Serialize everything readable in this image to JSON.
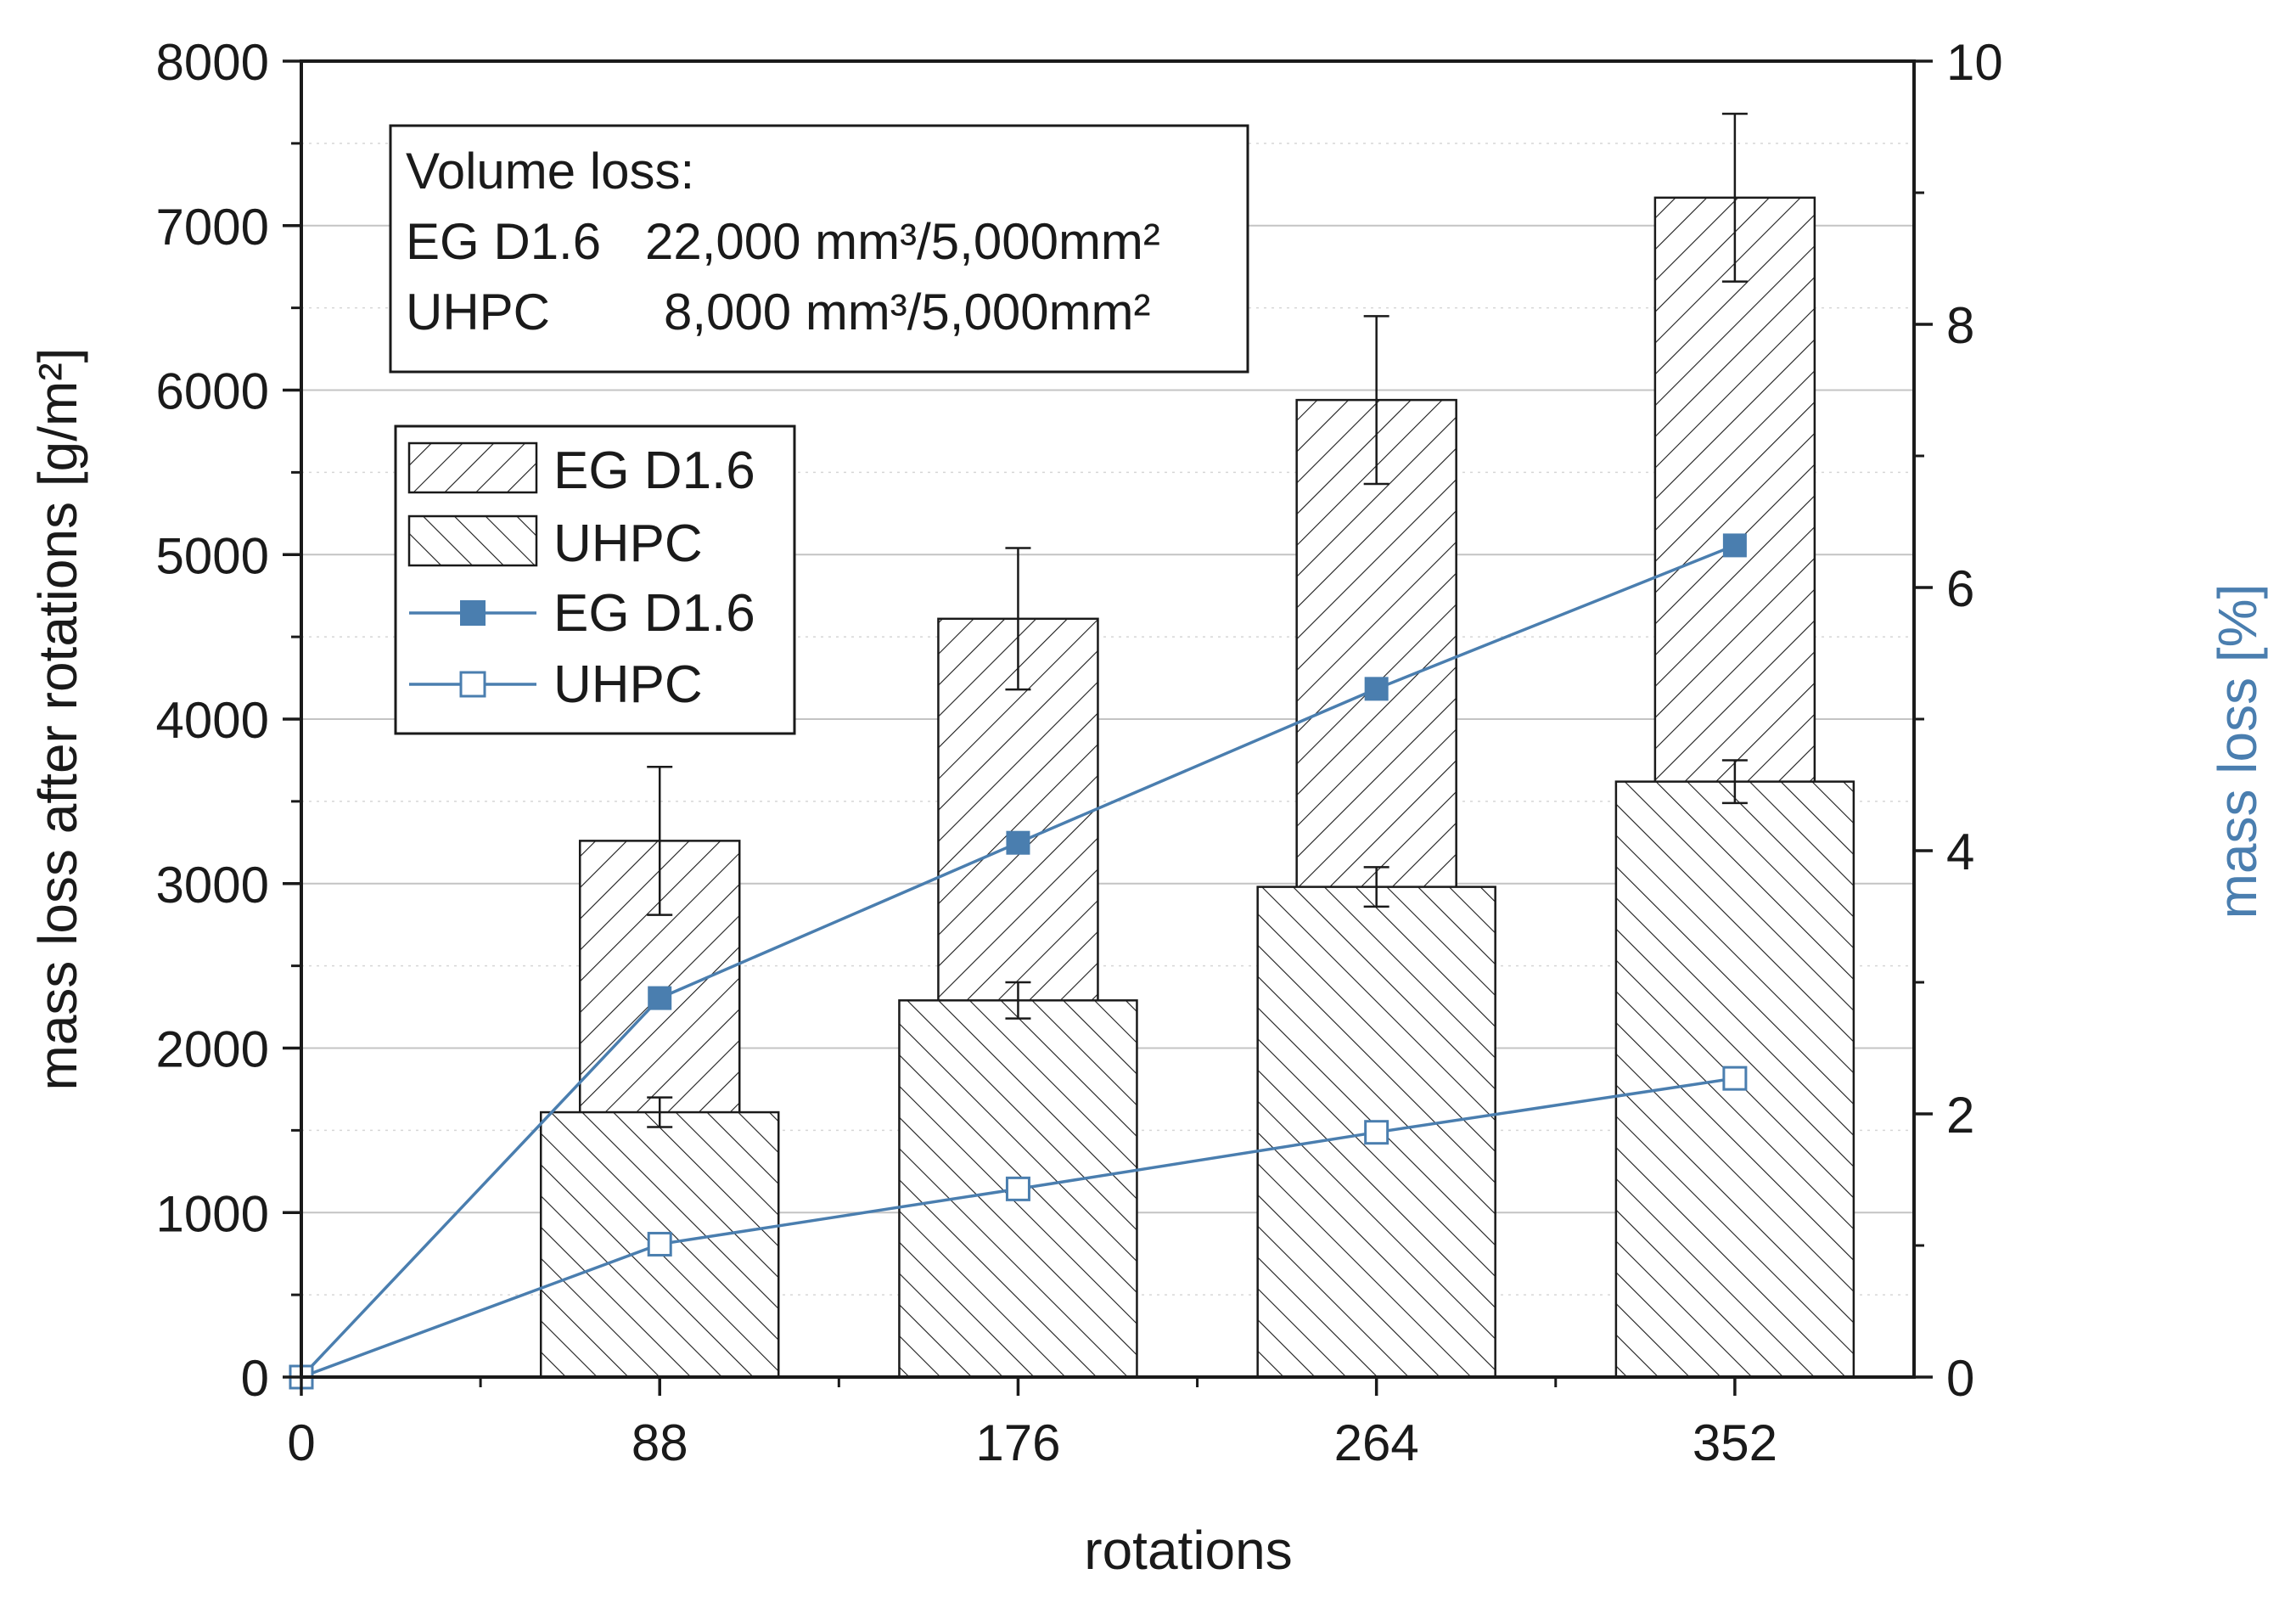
{
  "chart_data": {
    "type": "bar",
    "xlabel": "rotations",
    "ylabel": "mass loss after rotations [g/m²]",
    "y2label": "mass loss [%]",
    "x_ticks": [
      0,
      88,
      176,
      264,
      352
    ],
    "x_tick_labels": [
      "0",
      "88",
      "176",
      "264",
      "352"
    ],
    "x_range": [
      0,
      396
    ],
    "ylim": [
      0,
      8000
    ],
    "y_ticks": [
      0,
      1000,
      2000,
      3000,
      4000,
      5000,
      6000,
      7000,
      8000
    ],
    "y_tick_labels": [
      "0",
      "1000",
      "2000",
      "3000",
      "4000",
      "5000",
      "6000",
      "7000",
      "8000"
    ],
    "y2lim": [
      0,
      10
    ],
    "y2_ticks": [
      0,
      2,
      4,
      6,
      8,
      10
    ],
    "y2_tick_labels": [
      "0",
      "2",
      "4",
      "6",
      "8",
      "10"
    ],
    "grid": true,
    "bar_series": [
      {
        "name": "EG D1.6",
        "hatch": "forward",
        "x": [
          88,
          176,
          264,
          352
        ],
        "values": [
          3260,
          4610,
          5940,
          7170
        ],
        "errors": [
          450,
          430,
          510,
          510
        ]
      },
      {
        "name": "UHPC",
        "hatch": "back",
        "x": [
          88,
          176,
          264,
          352
        ],
        "values": [
          1610,
          2290,
          2980,
          3620
        ],
        "errors": [
          90,
          110,
          120,
          130
        ]
      }
    ],
    "line_series": [
      {
        "name": "EG D1.6",
        "axis": "right",
        "marker": "filled-square",
        "x": [
          0,
          88,
          176,
          264,
          352
        ],
        "values": [
          0,
          2.88,
          4.06,
          5.23,
          6.32
        ]
      },
      {
        "name": "UHPC",
        "axis": "right",
        "marker": "open-square",
        "x": [
          0,
          88,
          176,
          264,
          352
        ],
        "values": [
          0,
          1.01,
          1.43,
          1.86,
          2.27
        ]
      }
    ],
    "annotation": {
      "title": "Volume loss:",
      "lines": [
        {
          "label": "EG D1.6",
          "value": "22,000 mm³/5,000mm²"
        },
        {
          "label": "UHPC",
          "value": "8,000 mm³/5,000mm²"
        }
      ]
    },
    "legend": {
      "position": "top-left",
      "entries": [
        "EG D1.6",
        "UHPC",
        "EG D1.6",
        "UHPC"
      ]
    },
    "colors": {
      "line": "#4a7eaf",
      "marker_fill": "#4a7eaf",
      "text": "#1a1a1a",
      "ylabel2": "#4a7eaf"
    }
  }
}
